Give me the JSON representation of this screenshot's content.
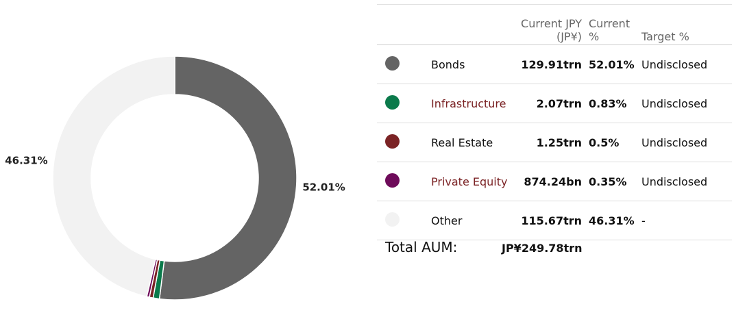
{
  "chart_data": {
    "type": "pie",
    "values": [
      52.01,
      0.83,
      0.5,
      0.35,
      46.31
    ],
    "value_labels": [
      "52.01%",
      null,
      null,
      null,
      "46.31%"
    ],
    "colors": [
      "#646464",
      "#0b7a4b",
      "#7b2325",
      "#6e0b5a",
      "#f2f2f2"
    ]
  },
  "table": {
    "headers": [
      "Current JPY (JP¥)",
      "Current %",
      "Target %"
    ],
    "rows": [
      [
        "Bonds",
        "129.91trn",
        "52.01%",
        "Undisclosed"
      ],
      [
        "Infrastructure",
        "2.07trn",
        "0.83%",
        "Undisclosed"
      ],
      [
        "Real Estate",
        "1.25trn",
        "0.5%",
        "Undisclosed"
      ],
      [
        "Private Equity",
        "874.24bn",
        "0.35%",
        "Undisclosed"
      ],
      [
        "Other",
        "115.67trn",
        "46.31%",
        "-"
      ]
    ],
    "link_rows": [
      1,
      3
    ],
    "total_label": "Total AUM:",
    "total_value": "JP¥249.78trn"
  }
}
